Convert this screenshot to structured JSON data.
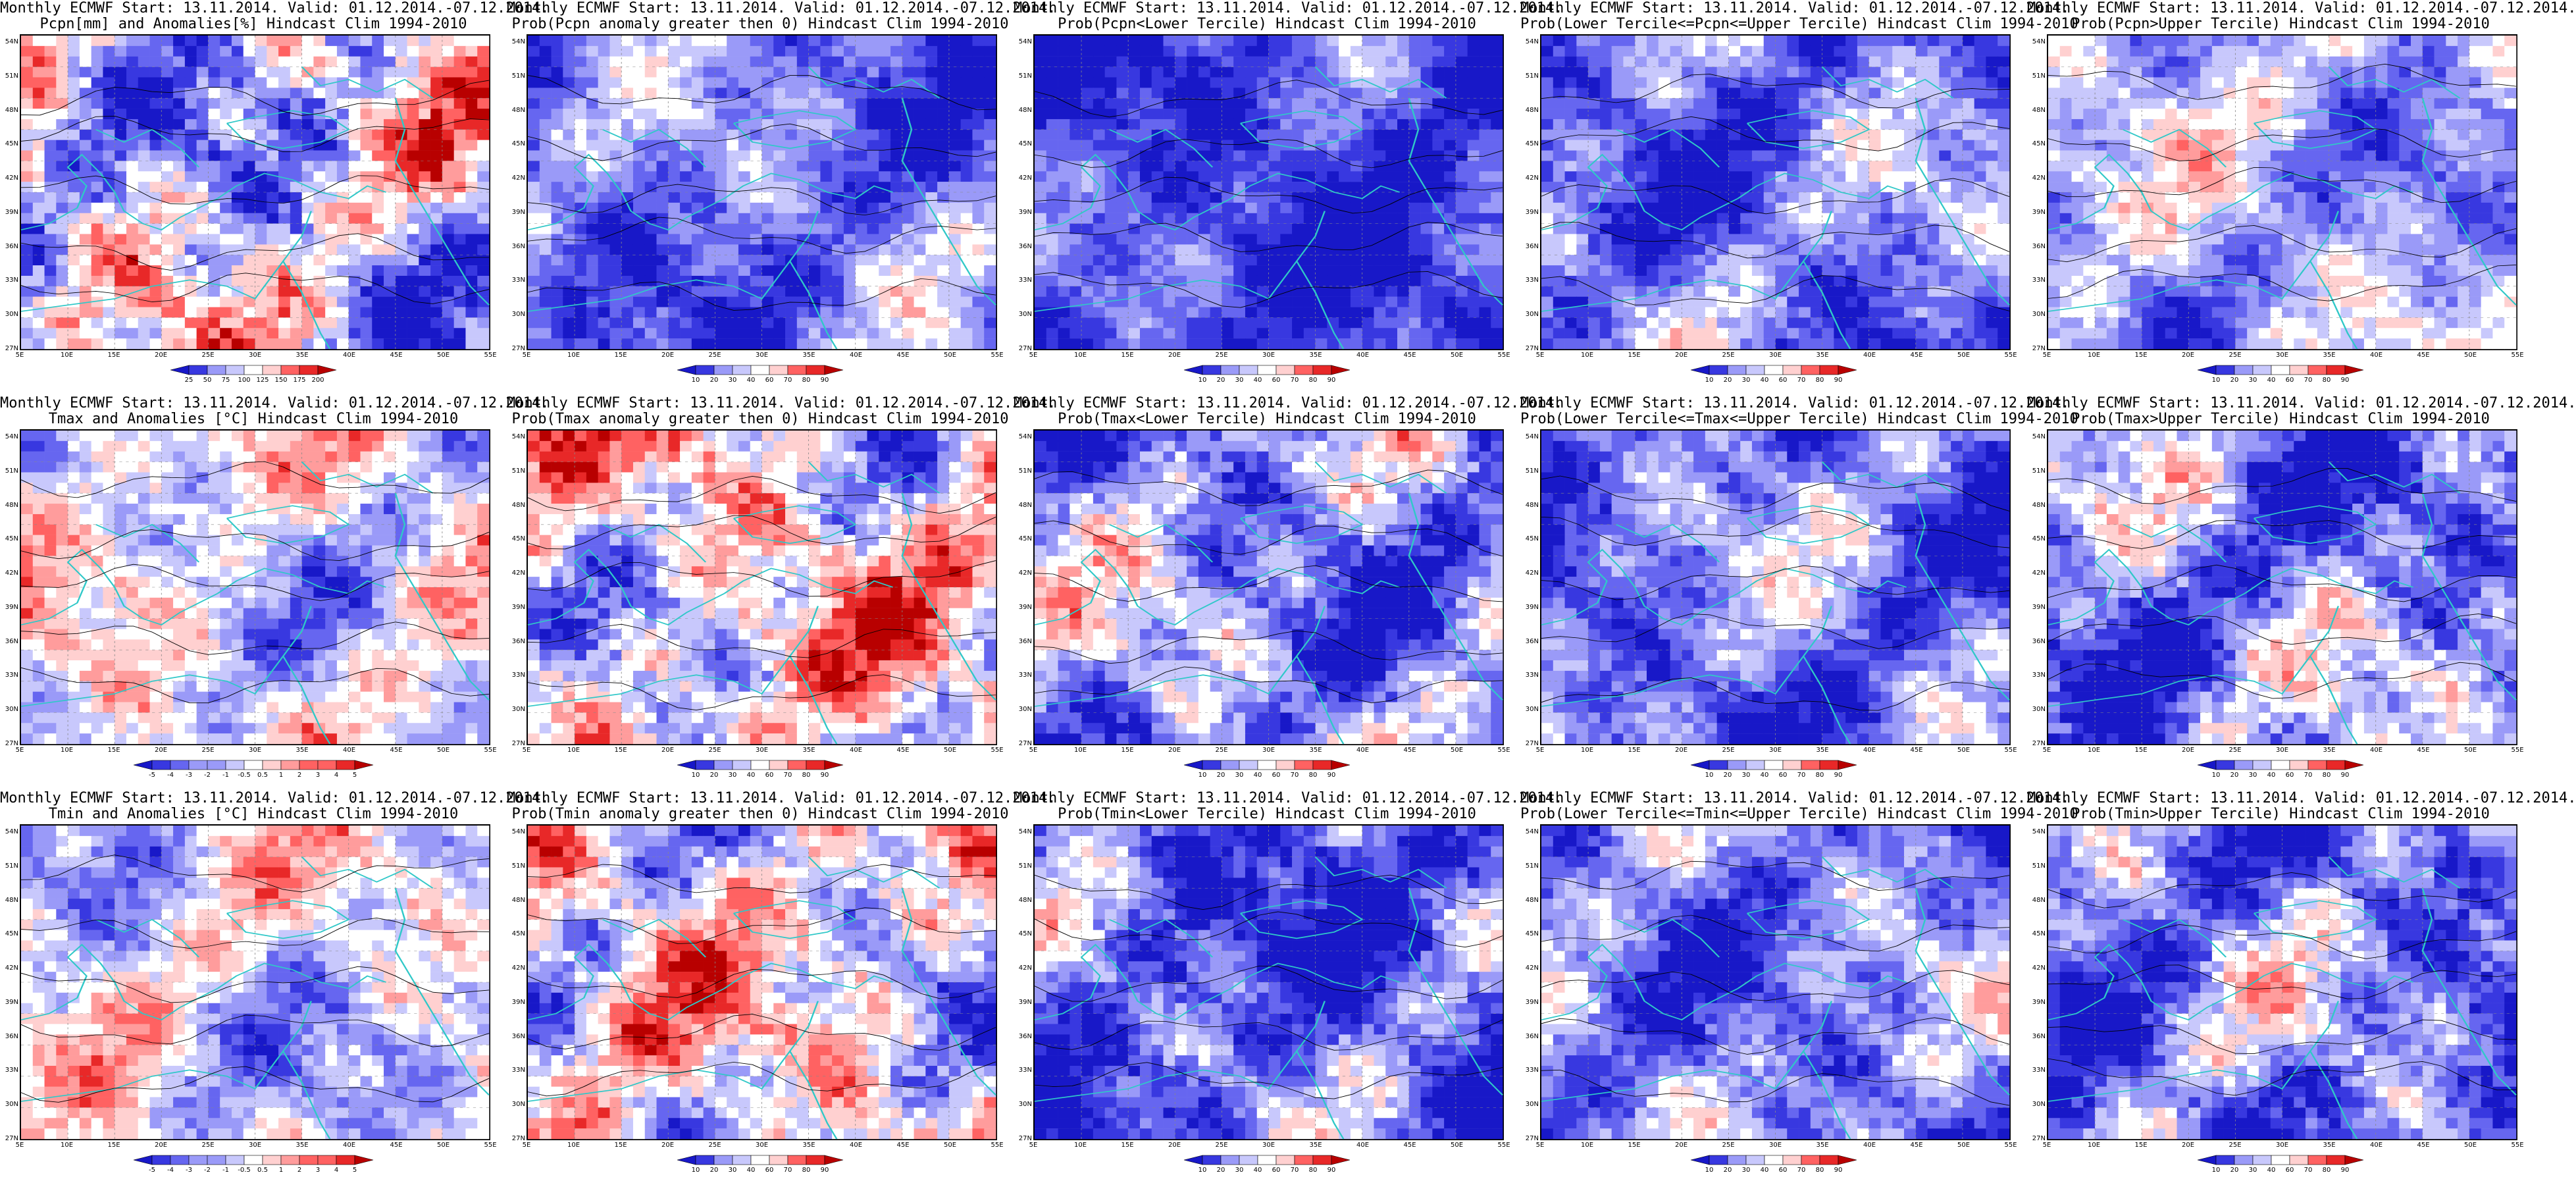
{
  "x_labels": [
    "5E",
    "10E",
    "15E",
    "20E",
    "25E",
    "30E",
    "35E",
    "40E",
    "45E",
    "50E",
    "55E"
  ],
  "y_labels": [
    "54N",
    "51N",
    "48N",
    "45N",
    "42N",
    "39N",
    "36N",
    "33N",
    "30N",
    "27N"
  ],
  "colors": {
    "scale": [
      "#1818c8",
      "#3838e0",
      "#6666f0",
      "#9a9af8",
      "#c8c8fc",
      "#ffffff",
      "#ffd0d0",
      "#ff9c9c",
      "#ff6262",
      "#e82828",
      "#b80000"
    ],
    "coast": "#30c8c8",
    "contour": "#000000"
  },
  "panels": [
    {
      "id": "p1",
      "title1": "Monthly ECMWF Start: 13.11.2014. Valid: 01.12.2014.-07.12.2014.",
      "title2": "Pcpn[mm] and Anomalies[%] Hindcast Clim 1994-2010",
      "cbar": [
        "25",
        "50",
        "75",
        "100",
        "125",
        "150",
        "175",
        "200"
      ],
      "bias": -0.3,
      "var": 1.3,
      "seed": 11
    },
    {
      "id": "p2",
      "title1": "Monthly ECMWF Start: 13.11.2014. Valid: 01.12.2014.-07.12.2014.",
      "title2": "Prob(Pcpn anomaly greater then 0) Hindcast Clim 1994-2010",
      "cbar": [
        "10",
        "20",
        "30",
        "40",
        "60",
        "70",
        "80",
        "90"
      ],
      "bias": -0.9,
      "var": 0.8,
      "seed": 23
    },
    {
      "id": "p3",
      "title1": "Monthly ECMWF Start: 13.11.2014. Valid: 01.12.2014.-07.12.2014.",
      "title2": "Prob(Pcpn<Lower Tercile) Hindcast Clim 1994-2010",
      "cbar": [
        "10",
        "20",
        "30",
        "40",
        "60",
        "70",
        "80",
        "90"
      ],
      "bias": -1.3,
      "var": 0.7,
      "seed": 37
    },
    {
      "id": "p4",
      "title1": "Monthly ECMWF Start: 13.11.2014. Valid: 01.12.2014.-07.12.2014.",
      "title2": "Prob(Lower Tercile<=Pcpn<=Upper Tercile) Hindcast Clim 1994-2010",
      "cbar": [
        "10",
        "20",
        "30",
        "40",
        "60",
        "70",
        "80",
        "90"
      ],
      "bias": -0.9,
      "var": 0.9,
      "seed": 41
    },
    {
      "id": "p5",
      "title1": "Monthly ECMWF Start: 13.11.2014. Valid: 01.12.2014.-07.12.2014.",
      "title2": "Prob(Pcpn>Upper Tercile) Hindcast Clim 1994-2010",
      "cbar": [
        "10",
        "20",
        "30",
        "40",
        "60",
        "70",
        "80",
        "90"
      ],
      "bias": -0.5,
      "var": 0.8,
      "seed": 53
    },
    {
      "id": "p6",
      "title1": "Monthly ECMWF Start: 13.11.2014. Valid: 01.12.2014.-07.12.2014.",
      "title2": "Tmax and Anomalies [°C] Hindcast Clim 1994-2010",
      "cbar": [
        "-5",
        "-4",
        "-3",
        "-2",
        "-1",
        "-0.5",
        "0.5",
        "1",
        "2",
        "3",
        "4",
        "5"
      ],
      "bias": -0.1,
      "var": 0.9,
      "seed": 61
    },
    {
      "id": "p7",
      "title1": "Monthly ECMWF Start: 13.11.2014. Valid: 01.12.2014.-07.12.2014.",
      "title2": "Prob(Tmax anomaly greater then 0) Hindcast Clim 1994-2010",
      "cbar": [
        "10",
        "20",
        "30",
        "40",
        "60",
        "70",
        "80",
        "90"
      ],
      "bias": 0.1,
      "var": 1.2,
      "seed": 71
    },
    {
      "id": "p8",
      "title1": "Monthly ECMWF Start: 13.11.2014. Valid: 01.12.2014.-07.12.2014.",
      "title2": "Prob(Tmax<Lower Tercile) Hindcast Clim 1994-2010",
      "cbar": [
        "10",
        "20",
        "30",
        "40",
        "60",
        "70",
        "80",
        "90"
      ],
      "bias": -0.7,
      "var": 1.1,
      "seed": 83
    },
    {
      "id": "p9",
      "title1": "Monthly ECMWF Start: 13.11.2014. Valid: 01.12.2014.-07.12.2014.",
      "title2": "Prob(Lower Tercile<=Tmax<=Upper Tercile) Hindcast Clim 1994-2010",
      "cbar": [
        "10",
        "20",
        "30",
        "40",
        "60",
        "70",
        "80",
        "90"
      ],
      "bias": -0.9,
      "var": 0.9,
      "seed": 97
    },
    {
      "id": "p10",
      "title1": "Monthly ECMWF Start: 13.11.2014. Valid: 01.12.2014.-07.12.2014.",
      "title2": "Prob(Tmax>Upper Tercile) Hindcast Clim 1994-2010",
      "cbar": [
        "10",
        "20",
        "30",
        "40",
        "60",
        "70",
        "80",
        "90"
      ],
      "bias": -0.8,
      "var": 1.1,
      "seed": 101
    },
    {
      "id": "p11",
      "title1": "Monthly ECMWF Start: 13.11.2014. Valid: 01.12.2014.-07.12.2014.",
      "title2": "Tmin and Anomalies [°C] Hindcast Clim 1994-2010",
      "cbar": [
        "-5",
        "-4",
        "-3",
        "-2",
        "-1",
        "-0.5",
        "0.5",
        "1",
        "2",
        "3",
        "4",
        "5"
      ],
      "bias": -0.2,
      "var": 0.9,
      "seed": 113
    },
    {
      "id": "p12",
      "title1": "Monthly ECMWF Start: 13.11.2014. Valid: 01.12.2014.-07.12.2014.",
      "title2": "Prob(Tmin anomaly greater then 0) Hindcast Clim 1994-2010",
      "cbar": [
        "10",
        "20",
        "30",
        "40",
        "60",
        "70",
        "80",
        "90"
      ],
      "bias": 0.0,
      "var": 1.2,
      "seed": 127
    },
    {
      "id": "p13",
      "title1": "Monthly ECMWF Start: 13.11.2014. Valid: 01.12.2014.-07.12.2014.",
      "title2": "Prob(Tmin<Lower Tercile) Hindcast Clim 1994-2010",
      "cbar": [
        "10",
        "20",
        "30",
        "40",
        "60",
        "70",
        "80",
        "90"
      ],
      "bias": -1.1,
      "var": 1.0,
      "seed": 131
    },
    {
      "id": "p14",
      "title1": "Monthly ECMWF Start: 13.11.2014. Valid: 01.12.2014.-07.12.2014.",
      "title2": "Prob(Lower Tercile<=Tmin<=Upper Tercile) Hindcast Clim 1994-2010",
      "cbar": [
        "10",
        "20",
        "30",
        "40",
        "60",
        "70",
        "80",
        "90"
      ],
      "bias": -0.8,
      "var": 0.9,
      "seed": 139
    },
    {
      "id": "p15",
      "title1": "Monthly ECMWF Start: 13.11.2014. Valid: 01.12.2014.-07.12.2014.",
      "title2": "Prob(Tmin>Upper Tercile) Hindcast Clim 1994-2010",
      "cbar": [
        "10",
        "20",
        "30",
        "40",
        "60",
        "70",
        "80",
        "90"
      ],
      "bias": -0.9,
      "var": 1.1,
      "seed": 149
    }
  ]
}
